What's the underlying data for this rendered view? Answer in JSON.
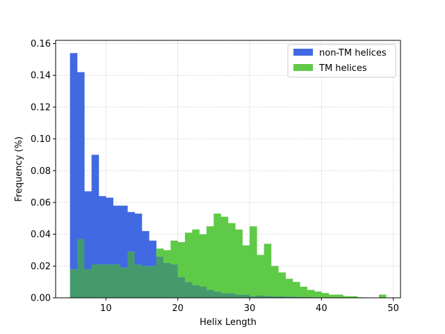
{
  "chart_data": {
    "type": "bar",
    "subtype": "histogram-overlay",
    "xlabel": "Helix Length",
    "ylabel": "Frequency (%)",
    "xlim": [
      3,
      51
    ],
    "ylim": [
      0,
      0.162
    ],
    "xticks": [
      "10",
      "20",
      "30",
      "40",
      "50"
    ],
    "yticks": [
      "0.00",
      "0.02",
      "0.04",
      "0.06",
      "0.08",
      "0.10",
      "0.12",
      "0.14",
      "0.16"
    ],
    "grid": true,
    "legend_position": "upper right",
    "bin_edges": [
      5,
      6,
      7,
      8,
      9,
      10,
      11,
      12,
      13,
      14,
      15,
      16,
      17,
      18,
      19,
      20,
      21,
      22,
      23,
      24,
      25,
      26,
      27,
      28,
      29,
      30,
      31,
      32,
      33,
      34,
      35,
      36,
      37,
      38,
      39,
      40,
      41,
      42,
      43,
      44,
      45,
      46,
      47,
      48,
      49
    ],
    "series": [
      {
        "name": "non-TM helices",
        "color": "#4169e1",
        "values": [
          0.154,
          0.142,
          0.067,
          0.09,
          0.064,
          0.063,
          0.058,
          0.058,
          0.054,
          0.053,
          0.042,
          0.036,
          0.026,
          0.022,
          0.021,
          0.013,
          0.01,
          0.008,
          0.007,
          0.005,
          0.004,
          0.003,
          0.003,
          0.002,
          0.002,
          0.001,
          0.0015,
          0.0012,
          0.001,
          0.001,
          0.0008,
          0.0006,
          0.0005,
          0.0004,
          0.0003,
          0.0003,
          0.0002,
          0.0002,
          0.0002,
          0.0001,
          0.0001,
          0.0001,
          0.0001,
          0.0001
        ]
      },
      {
        "name": "TM helices",
        "color": "#5fca48",
        "values": [
          0.018,
          0.037,
          0.018,
          0.021,
          0.021,
          0.021,
          0.021,
          0.019,
          0.029,
          0.021,
          0.02,
          0.02,
          0.031,
          0.03,
          0.036,
          0.035,
          0.041,
          0.043,
          0.04,
          0.045,
          0.053,
          0.051,
          0.047,
          0.043,
          0.033,
          0.045,
          0.027,
          0.034,
          0.02,
          0.016,
          0.012,
          0.01,
          0.007,
          0.005,
          0.004,
          0.003,
          0.002,
          0.002,
          0.001,
          0.001,
          0.0003,
          0.0002,
          0.0002,
          0.002
        ]
      }
    ]
  },
  "colors": {
    "overlap": "#459a6d",
    "grid": "#b0b0b0"
  }
}
